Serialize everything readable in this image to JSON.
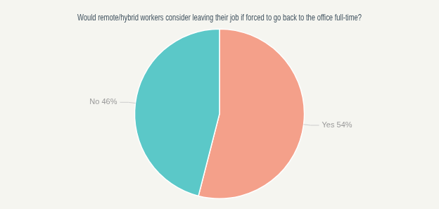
{
  "chart_data": {
    "type": "pie",
    "title": "Would remote/hybrid workers consider leaving their job if forced to go back to the office full-time?",
    "categories": [
      "Yes",
      "No"
    ],
    "values": [
      54,
      46
    ],
    "value_labels": [
      "Yes 54%",
      "No 46%"
    ],
    "colors": [
      "#F4A08A",
      "#5BC8C8"
    ],
    "data_labels": true,
    "legend": false
  }
}
